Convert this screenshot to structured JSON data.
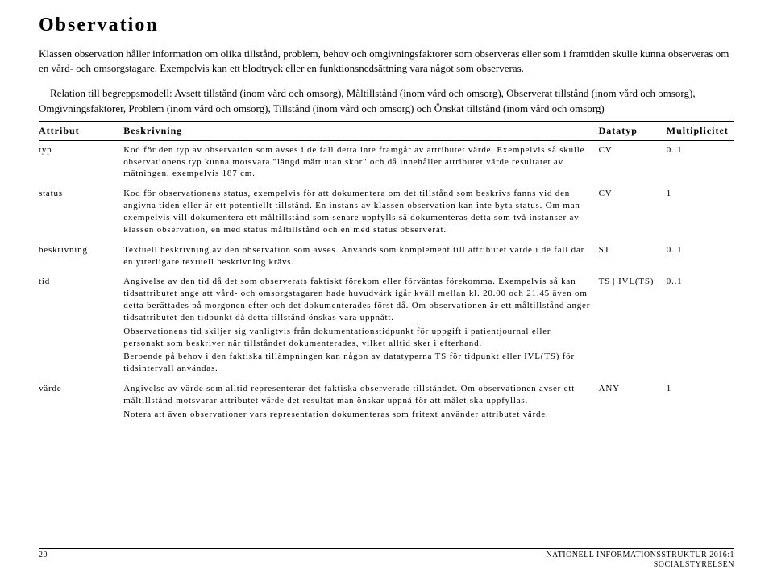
{
  "title": "Observation",
  "intro": {
    "p1": "Klassen observation håller information om olika tillstånd, problem, behov och omgivningsfaktorer som observeras eller som i framtiden skulle kunna observeras om en vård- och omsorgstagare. Exempelvis kan ett blodtryck eller en funktionsnedsättning vara något som observeras.",
    "p2": "Relation till begreppsmodell: Avsett tillstånd (inom vård och omsorg), Måltillstånd (inom vård och omsorg), Observerat tillstånd (inom vård och omsorg), Omgivningsfaktorer, Problem (inom vård och omsorg), Tillstånd (inom vård och omsorg) och Önskat tillstånd (inom vård och omsorg)"
  },
  "table": {
    "headers": {
      "attribut": "Attribut",
      "beskrivning": "Beskrivning",
      "datatyp": "Datatyp",
      "multiplicitet": "Multiplicitet"
    },
    "rows": [
      {
        "attribut": "typ",
        "beskrivning": [
          "Kod för den typ av observation som avses i de fall detta inte framgår av attributet värde. Exempelvis så skulle observationens typ kunna motsvara \"längd mätt utan skor\" och då innehåller attributet värde resultatet av mätningen, exempelvis 187 cm."
        ],
        "datatyp": "CV",
        "multiplicitet": "0..1"
      },
      {
        "attribut": "status",
        "beskrivning": [
          "Kod för observationens status, exempelvis för att dokumentera om det tillstånd som beskrivs fanns vid den angivna tiden eller är ett potentiellt tillstånd. En instans av klassen observation kan inte byta status. Om man exempelvis vill dokumentera ett måltillstånd som senare uppfylls så dokumenteras detta som två instanser av klassen observation, en med status måltillstånd och en med status observerat."
        ],
        "datatyp": "CV",
        "multiplicitet": "1"
      },
      {
        "attribut": "beskrivning",
        "beskrivning": [
          "Textuell beskrivning av den observation som avses. Används som komplement till attributet värde i de fall där en ytterligare textuell beskrivning krävs."
        ],
        "datatyp": "ST",
        "multiplicitet": "0..1"
      },
      {
        "attribut": "tid",
        "beskrivning": [
          "Angivelse av den tid då det som observerats faktiskt förekom eller förväntas förekomma. Exempelvis så kan tidsattributet ange att vård- och omsorgstagaren hade huvudvärk igår kväll mellan kl. 20.00 och 21.45 även om detta berättades på morgonen efter och det dokumenterades först då. Om observationen är ett måltillstånd anger tidsattributet den tidpunkt då detta tillstånd önskas vara uppnått.",
          "Observationens tid skiljer sig vanligtvis från dokumentationstidpunkt för uppgift i patientjournal eller personakt som beskriver när tillståndet dokumenterades, vilket alltid sker i efterhand.",
          "Beroende på behov i den faktiska tillämpningen kan någon av datatyperna TS för tidpunkt eller IVL(TS) för tidsintervall användas."
        ],
        "datatyp": "TS | IVL(TS)",
        "multiplicitet": "0..1"
      },
      {
        "attribut": "värde",
        "beskrivning": [
          "Angivelse av värde som alltid representerar det faktiska observerade tillståndet. Om observationen avser ett måltillstånd motsvarar attributet värde det resultat man önskar uppnå för att målet ska uppfyllas.",
          "Notera att även observationer vars representation dokumenteras som fritext använder attributet värde."
        ],
        "datatyp": "ANY",
        "multiplicitet": "1"
      }
    ]
  },
  "footer": {
    "page_number": "20",
    "doc_title": "NATIONELL INFORMATIONSSTRUKTUR 2016:1",
    "org": "SOCIALSTYRELSEN"
  }
}
